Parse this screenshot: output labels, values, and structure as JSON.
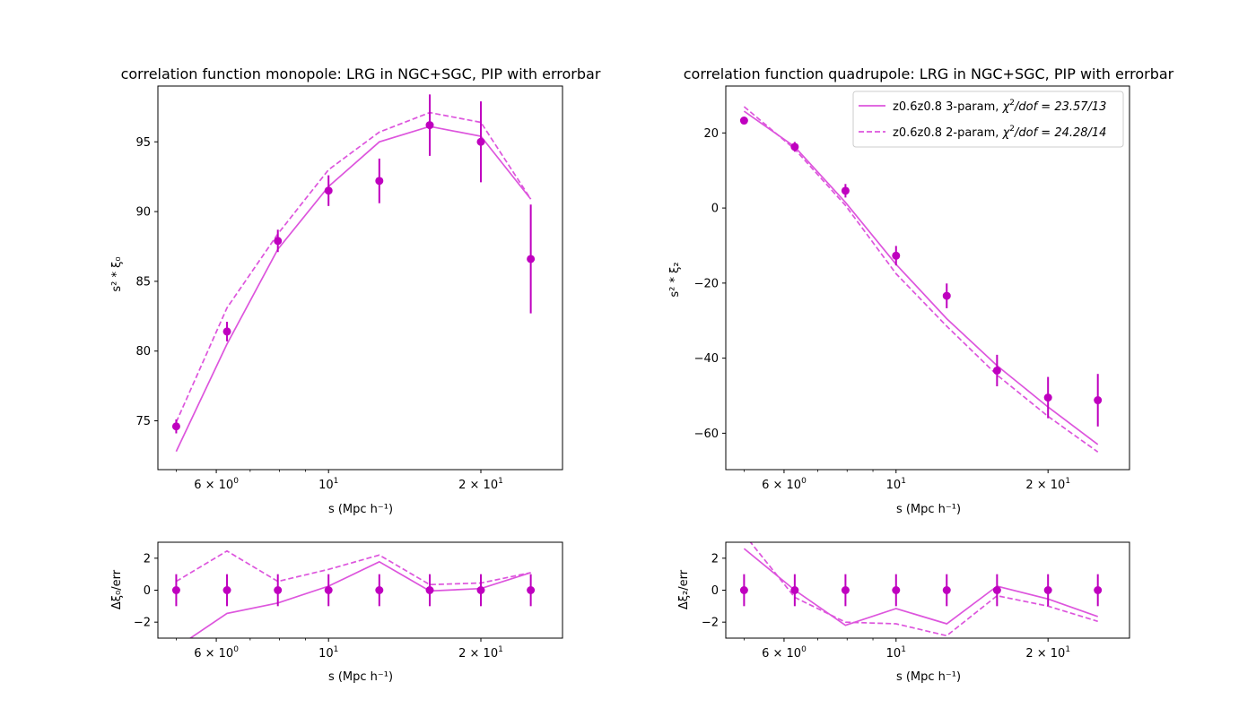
{
  "colors": {
    "points": "#bf00bf",
    "model": "#dd55dd"
  },
  "x_tick_labels": {
    "t6": "6",
    "t10": "10",
    "t20": "20",
    "base": "2 ×",
    "exp0": "0",
    "exp1": "1",
    "times": "×"
  },
  "chart_data": [
    {
      "id": "mono",
      "type": "line",
      "title": "correlation function monopole: LRG in NGC+SGC, PIP with errorbar",
      "xlabel": "s (Mpc h⁻¹)",
      "ylabel": "s² * ξ₀",
      "xscale": "log",
      "xlim": [
        4.6,
        29
      ],
      "ylim": [
        71.5,
        99
      ],
      "yticks": [
        75,
        80,
        85,
        90,
        95
      ],
      "x": [
        5,
        6.3,
        7.94,
        10,
        12.6,
        15.85,
        20,
        25.1
      ],
      "data": {
        "y": [
          74.6,
          81.4,
          87.9,
          91.5,
          92.2,
          96.2,
          95.0,
          86.6
        ],
        "err": [
          0.5,
          0.7,
          0.8,
          1.1,
          1.6,
          2.2,
          2.9,
          3.9
        ]
      },
      "series": [
        {
          "name": "",
          "style": "solid",
          "y": [
            72.8,
            80.5,
            87.3,
            91.8,
            95.0,
            96.1,
            95.4,
            90.9
          ]
        },
        {
          "name": "",
          "style": "dashed",
          "y": [
            74.9,
            83.1,
            88.4,
            93.0,
            95.7,
            97.1,
            96.4,
            90.9
          ]
        }
      ]
    },
    {
      "id": "quad",
      "type": "line",
      "title": "correlation function quadrupole: LRG in NGC+SGC, PIP with errorbar",
      "xlabel": "s (Mpc h⁻¹)",
      "ylabel": "s² * ξ₂",
      "xscale": "log",
      "xlim": [
        4.6,
        29
      ],
      "ylim": [
        -69.7,
        32.5
      ],
      "yticks": [
        -60,
        -40,
        -20,
        0,
        20
      ],
      "x": [
        5,
        6.3,
        7.94,
        10,
        12.6,
        15.85,
        20,
        25.1
      ],
      "data": {
        "y": [
          23.3,
          16.3,
          4.6,
          -12.7,
          -23.4,
          -43.3,
          -50.5,
          -51.2
        ],
        "err": [
          0.8,
          1.3,
          1.8,
          2.6,
          3.3,
          4.2,
          5.5,
          7.0
        ]
      },
      "legend": {
        "position": "upper right",
        "entries": [
          {
            "style": "solid",
            "text_before": "z0.6z0.8 3-param, ",
            "chi": "χ",
            "sup": "2",
            "text_after": "/dof = 23.57/13"
          },
          {
            "style": "dashed",
            "text_before": "z0.6z0.8 2-param, ",
            "chi": "χ",
            "sup": "2",
            "text_after": "/dof = 24.28/14"
          }
        ]
      },
      "series": [
        {
          "name": "z0.6z0.8 3-param, χ²/dof = 23.57/13",
          "style": "solid",
          "y": [
            25.8,
            16.3,
            1.5,
            -15.0,
            -29.5,
            -42.0,
            -53.0,
            -63.0
          ]
        },
        {
          "name": "z0.6z0.8 2-param, χ²/dof = 24.28/14",
          "style": "dashed",
          "y": [
            27.0,
            15.7,
            0.7,
            -17.5,
            -31.5,
            -44.5,
            -55.5,
            -65.0
          ]
        }
      ]
    },
    {
      "id": "mono_res",
      "type": "line",
      "xlabel": "s (Mpc h⁻¹)",
      "ylabel": "Δξ₀/err",
      "xscale": "log",
      "xlim": [
        4.6,
        29
      ],
      "ylim": [
        -3,
        3
      ],
      "yticks": [
        -2,
        0,
        2
      ],
      "x": [
        5,
        6.3,
        7.94,
        10,
        12.6,
        15.85,
        20,
        25.1
      ],
      "data": {
        "y": [
          0,
          0,
          0,
          0,
          0,
          0,
          0,
          0
        ],
        "err": [
          1,
          1,
          1,
          1,
          1,
          1,
          1,
          1
        ]
      },
      "series": [
        {
          "name": "",
          "style": "solid",
          "y": [
            -3.6,
            -1.45,
            -0.8,
            0.25,
            1.78,
            -0.05,
            0.1,
            1.1
          ]
        },
        {
          "name": "",
          "style": "dashed",
          "y": [
            0.55,
            2.45,
            0.55,
            1.3,
            2.2,
            0.35,
            0.45,
            1.1
          ]
        }
      ]
    },
    {
      "id": "quad_res",
      "type": "line",
      "xlabel": "s (Mpc h⁻¹)",
      "ylabel": "Δξ₂/err",
      "xscale": "log",
      "xlim": [
        4.6,
        29
      ],
      "ylim": [
        -3,
        3
      ],
      "yticks": [
        -2,
        0,
        2
      ],
      "x": [
        5,
        6.3,
        7.94,
        10,
        12.6,
        15.85,
        20,
        25.1
      ],
      "data": {
        "y": [
          0,
          0,
          0,
          0,
          0,
          0,
          0,
          0
        ],
        "err": [
          1,
          1,
          1,
          1,
          1,
          1,
          1,
          1
        ]
      },
      "series": [
        {
          "name": "",
          "style": "solid",
          "y": [
            2.6,
            0.0,
            -2.2,
            -1.15,
            -2.1,
            0.25,
            -0.55,
            -1.65
          ]
        },
        {
          "name": "",
          "style": "dashed",
          "y": [
            3.5,
            -0.45,
            -2.0,
            -2.1,
            -2.85,
            -0.35,
            -1.0,
            -1.95
          ]
        }
      ]
    }
  ]
}
